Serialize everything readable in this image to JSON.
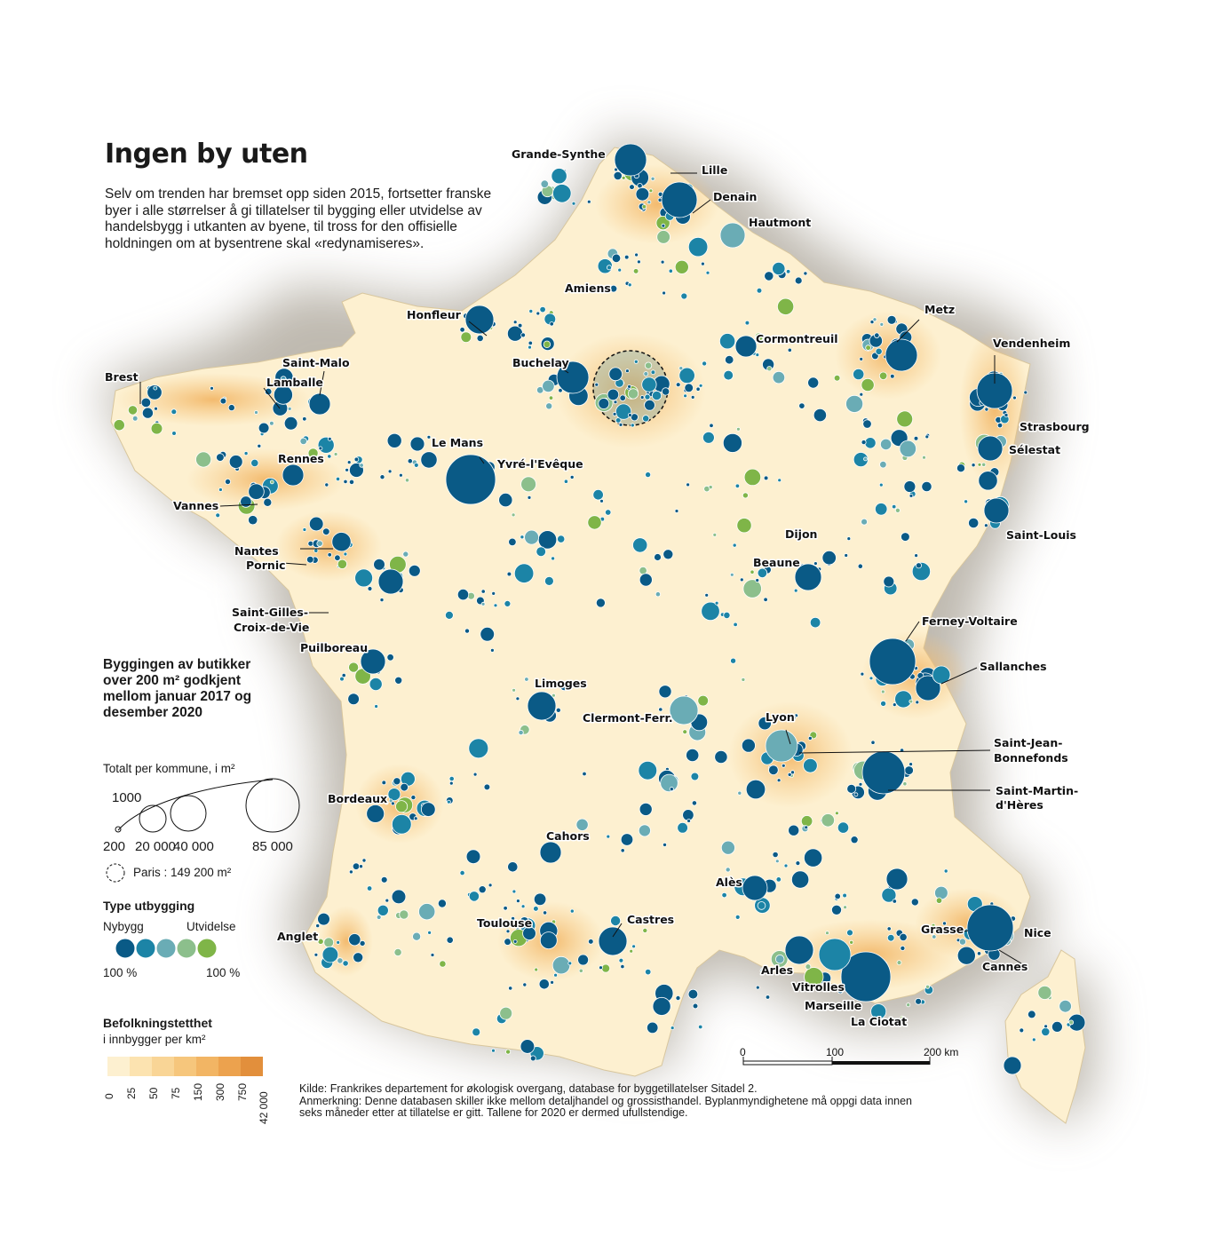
{
  "title": "Ingen by uten",
  "intro": "Selv om trenden har bremset opp siden 2015, fortsetter franske byer i alle størrelser å gi tillatelser til bygging eller utvidelse av handelsbygg i utkanten av byene, til tross for den offisielle holdningen om at bysentrene skal «redynamiseres».",
  "legend": {
    "title": "Byggingen av butikker over 200 m² godkjent mellom januar 2017 og desember 2020",
    "size_title": "Totalt per kommune, i m²",
    "size_values": [
      "1000",
      "200",
      "20 000",
      "40 000",
      "85 000"
    ],
    "paris_note": "Paris : 149 200 m²",
    "type_title": "Type utbygging",
    "type_left": "Nybygg",
    "type_right": "Utvidelse",
    "type_left_pct": "100 %",
    "type_right_pct": "100 %",
    "type_colors": [
      "#0a5a86",
      "#1c84a6",
      "#6aacb5",
      "#8cbf8c",
      "#7fb548"
    ],
    "density_title": "Befolkningstetthet",
    "density_subtitle": "i innbygger per km²",
    "density_classes": [
      "0",
      "25",
      "50",
      "75",
      "150",
      "300",
      "750",
      "42 000"
    ],
    "density_colors": [
      "#fdf0d0",
      "#fce3b0",
      "#f9d596",
      "#f6c67c",
      "#f2b564",
      "#eca24e",
      "#e28f3c"
    ]
  },
  "scale_bar": {
    "labels": [
      "0",
      "100",
      "200 km"
    ]
  },
  "source": "Kilde: Frankrikes departement for økologisk overgang, database for byggetillatelser Sitadel 2.",
  "note": "Anmerkning: Denne databasen skiller ikke mellom detaljhandel og grossisthandel. Byplanmyndighetene må oppgi data innen seks måneder etter at tillatelse er gitt. Tallene for 2020 er dermed ufullstendige.",
  "cities": [
    "Grande-Synthe",
    "Lille",
    "Denain",
    "Hautmont",
    "Amiens",
    "Honfleur",
    "Metz",
    "Cormontreuil",
    "Vendenheim",
    "Brest",
    "Saint-Malo",
    "Lamballe",
    "Buchelay",
    "Strasbourg",
    "Sélestat",
    "Le Mans",
    "Yvré-l'Evêque",
    "Rennes",
    "Vannes",
    "Saint-Louis",
    "Dijon",
    "Nantes",
    "Pornic",
    "Beaune",
    "Saint-Gilles-",
    "Croix-de-Vie",
    "Ferney-Voltaire",
    "Puilboreau",
    "Sallanches",
    "Limoges",
    "Clermont-Ferr.",
    "Lyon",
    "Saint-Jean-",
    "Bonnefonds",
    "Saint-Martin-",
    "d'Hères",
    "Bordeaux",
    "Cahors",
    "Alès",
    "Grasse",
    "Nice",
    "Anglet",
    "Toulouse",
    "Castres",
    "Cannes",
    "Arles",
    "Vitrolles",
    "Marseille",
    "La Ciotat"
  ]
}
